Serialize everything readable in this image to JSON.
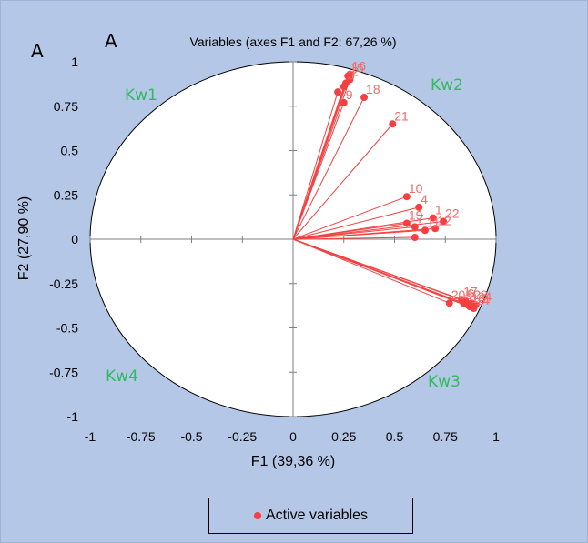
{
  "panel_labels": [
    "A",
    "A"
  ],
  "chart_data": {
    "type": "scatter",
    "subtype": "correlation-circle",
    "title": "Variables (axes F1 and F2: 67,26 %)",
    "xlabel": "F1 (39,36 %)",
    "ylabel": "F2 (27,90 %)",
    "xlim": [
      -1,
      1
    ],
    "ylim": [
      -1,
      1
    ],
    "xticks": [
      "-1",
      "-0.75",
      "-0.5",
      "-0.25",
      "0",
      "0.25",
      "0.5",
      "0.75",
      "1"
    ],
    "yticks": [
      "1",
      "0.75",
      "0.5",
      "0.25",
      "0",
      "-0.25",
      "-0.5",
      "-0.75",
      "-1"
    ],
    "quadrant_labels": [
      "Kw1",
      "Kw2",
      "Kw3",
      "Kw4"
    ],
    "grid": false,
    "legend": {
      "position": "bottom",
      "entries": [
        "Active variables"
      ]
    },
    "colors": {
      "vectors": "#f44040",
      "labels": "#f26a6a",
      "quadrants": "#2ebd59",
      "background": "#b4c7e7"
    },
    "series": [
      {
        "name": "Active variables",
        "points": [
          {
            "label": "15",
            "x": 0.27,
            "y": 0.92
          },
          {
            "label": "16",
            "x": 0.28,
            "y": 0.93
          },
          {
            "label": "2",
            "x": 0.28,
            "y": 0.9
          },
          {
            "label": "3",
            "x": 0.26,
            "y": 0.88
          },
          {
            "label": "",
            "x": 0.25,
            "y": 0.86
          },
          {
            "label": "",
            "x": 0.22,
            "y": 0.83
          },
          {
            "label": "9",
            "x": 0.25,
            "y": 0.77
          },
          {
            "label": "18",
            "x": 0.35,
            "y": 0.8
          },
          {
            "label": "21",
            "x": 0.49,
            "y": 0.65
          },
          {
            "label": "10",
            "x": 0.56,
            "y": 0.24
          },
          {
            "label": "4",
            "x": 0.62,
            "y": 0.18
          },
          {
            "label": "19",
            "x": 0.56,
            "y": 0.09
          },
          {
            "label": "7",
            "x": 0.6,
            "y": 0.07
          },
          {
            "label": "1",
            "x": 0.69,
            "y": 0.12
          },
          {
            "label": "12",
            "x": 0.7,
            "y": 0.06
          },
          {
            "label": "22",
            "x": 0.74,
            "y": 0.1
          },
          {
            "label": "11",
            "x": 0.65,
            "y": 0.05
          },
          {
            "label": "",
            "x": 0.6,
            "y": 0.01
          },
          {
            "label": "20",
            "x": 0.77,
            "y": -0.36
          },
          {
            "label": "5",
            "x": 0.84,
            "y": -0.36
          },
          {
            "label": "6",
            "x": 0.85,
            "y": -0.35
          },
          {
            "label": "8",
            "x": 0.86,
            "y": -0.37
          },
          {
            "label": "13",
            "x": 0.87,
            "y": -0.38
          },
          {
            "label": "14",
            "x": 0.89,
            "y": -0.39
          },
          {
            "label": "17",
            "x": 0.83,
            "y": -0.34
          },
          {
            "label": "23",
            "x": 0.88,
            "y": -0.36
          },
          {
            "label": "24",
            "x": 0.9,
            "y": -0.37
          }
        ]
      }
    ]
  }
}
